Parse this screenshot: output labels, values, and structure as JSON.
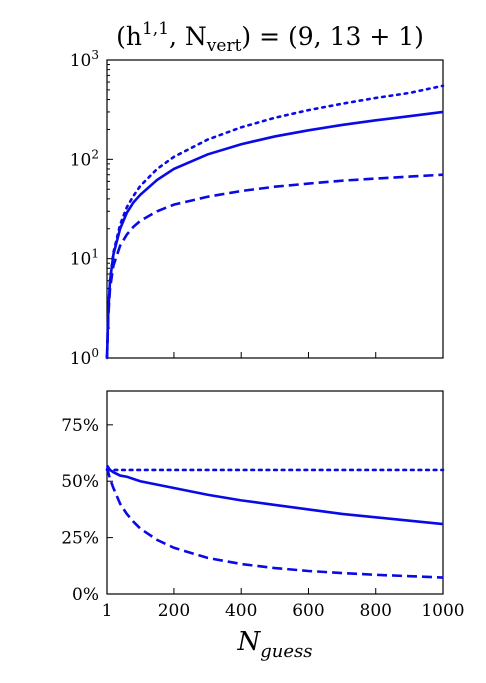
{
  "chart_data": [
    {
      "type": "line",
      "title": "(h^{1,1}, N_vert) = (9, 13 + 1)",
      "xlabel": "",
      "ylabel": "",
      "xlim": [
        1,
        1000
      ],
      "ylim": [
        1,
        1000
      ],
      "y_scale": "log",
      "y_ticks": [
        {
          "value": 1,
          "label": "10^0"
        },
        {
          "value": 10,
          "label": "10^1"
        },
        {
          "value": 100,
          "label": "10^2"
        },
        {
          "value": 1000,
          "label": "10^3"
        }
      ],
      "grid": false,
      "colors": {
        "series": "#0a0ae6"
      },
      "series": [
        {
          "style": "dotted",
          "x": [
            1,
            5,
            10,
            20,
            40,
            60,
            80,
            100,
            150,
            200,
            300,
            400,
            500,
            600,
            700,
            800,
            900,
            1000
          ],
          "y": [
            1,
            3,
            6,
            11.5,
            22,
            33,
            43,
            54,
            80,
            106,
            158,
            210,
            262,
            313,
            363,
            415,
            466,
            550
          ]
        },
        {
          "style": "solid",
          "x": [
            1,
            5,
            10,
            20,
            40,
            60,
            80,
            100,
            150,
            200,
            300,
            400,
            500,
            600,
            700,
            800,
            900,
            1000
          ],
          "y": [
            1,
            3,
            6,
            11,
            20,
            29,
            37,
            44,
            62,
            80,
            112,
            142,
            170,
            196,
            222,
            247,
            272,
            300
          ]
        },
        {
          "style": "dashed",
          "x": [
            1,
            5,
            10,
            20,
            40,
            60,
            80,
            100,
            150,
            200,
            300,
            400,
            500,
            600,
            700,
            800,
            900,
            1000
          ],
          "y": [
            1,
            2.7,
            5,
            8.5,
            13.5,
            17.5,
            21,
            24,
            30,
            35,
            42,
            48,
            53,
            57,
            61,
            64,
            67,
            70
          ]
        }
      ]
    },
    {
      "type": "line",
      "xlabel": "N_guess",
      "ylabel": "",
      "xlim": [
        1,
        1000
      ],
      "ylim": [
        0,
        90
      ],
      "x_ticks": [
        {
          "value": 1,
          "label": "1"
        },
        {
          "value": 200,
          "label": "200"
        },
        {
          "value": 400,
          "label": "400"
        },
        {
          "value": 600,
          "label": "600"
        },
        {
          "value": 800,
          "label": "800"
        },
        {
          "value": 1000,
          "label": "1000"
        }
      ],
      "y_ticks": [
        {
          "value": 0,
          "label": "0%"
        },
        {
          "value": 25,
          "label": "25%"
        },
        {
          "value": 50,
          "label": "50%"
        },
        {
          "value": 75,
          "label": "75%"
        }
      ],
      "grid": false,
      "colors": {
        "series": "#0a0ae6"
      },
      "series": [
        {
          "style": "dotted",
          "x": [
            1,
            20,
            50,
            100,
            200,
            400,
            600,
            800,
            1000
          ],
          "y": [
            55,
            55,
            55,
            55,
            55,
            55,
            55,
            55,
            55
          ]
        },
        {
          "style": "solid",
          "x": [
            1,
            10,
            20,
            40,
            60,
            80,
            100,
            150,
            200,
            300,
            400,
            500,
            600,
            700,
            800,
            900,
            1000
          ],
          "y": [
            57,
            55,
            54,
            52.5,
            52,
            51,
            50,
            48.5,
            47,
            44,
            41.5,
            39.5,
            37.5,
            35.5,
            34,
            32.5,
            31
          ]
        },
        {
          "style": "dashed",
          "x": [
            1,
            10,
            20,
            40,
            60,
            80,
            100,
            150,
            200,
            300,
            400,
            500,
            600,
            700,
            800,
            900,
            1000
          ],
          "y": [
            56,
            51,
            47,
            40,
            35.5,
            32,
            29,
            24,
            20.5,
            16,
            13.3,
            11.5,
            10.2,
            9.3,
            8.5,
            7.9,
            7.3
          ]
        }
      ]
    }
  ]
}
